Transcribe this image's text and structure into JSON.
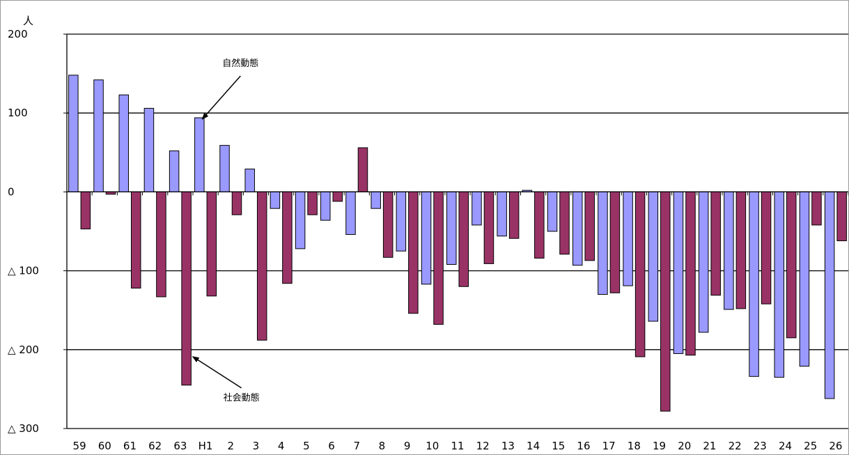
{
  "chart_data": {
    "type": "bar",
    "y_unit": "人",
    "ylim": [
      -300,
      200
    ],
    "ytick_values": [
      200,
      100,
      0,
      -100,
      -200,
      -300
    ],
    "ytick_labels": [
      "200",
      "100",
      "0",
      "△ 100",
      "△ 200",
      "△ 300"
    ],
    "categories": [
      "59",
      "60",
      "61",
      "62",
      "63",
      "H1",
      "2",
      "3",
      "4",
      "5",
      "6",
      "7",
      "8",
      "9",
      "10",
      "11",
      "12",
      "13",
      "14",
      "15",
      "16",
      "17",
      "18",
      "19",
      "20",
      "21",
      "22",
      "23",
      "24",
      "25",
      "26"
    ],
    "series": [
      {
        "color": "#9999FF",
        "values": [
          148,
          142,
          123,
          106,
          52,
          94,
          59,
          29,
          -21,
          -72,
          -36,
          -54,
          -21,
          -75,
          -117,
          -92,
          -42,
          -56,
          2,
          -50,
          -93,
          -130,
          -119,
          -164,
          -205,
          -178,
          -149,
          -234,
          -235,
          -221,
          -262
        ]
      },
      {
        "color": "#993366",
        "values": [
          -47,
          -3,
          -122,
          -133,
          -245,
          -132,
          -29,
          -188,
          -116,
          -29,
          -12,
          56,
          -83,
          -154,
          -168,
          -120,
          -91,
          -59,
          -84,
          -79,
          -87,
          -128,
          -209,
          -278,
          -207,
          -131,
          -148,
          -142,
          -185,
          -42,
          -62
        ]
      }
    ],
    "grid": true,
    "annotations": [
      {
        "text": "自然動態",
        "series": 0,
        "category": "H1"
      },
      {
        "text": "社会動態",
        "series": 1,
        "category": "63"
      }
    ]
  }
}
